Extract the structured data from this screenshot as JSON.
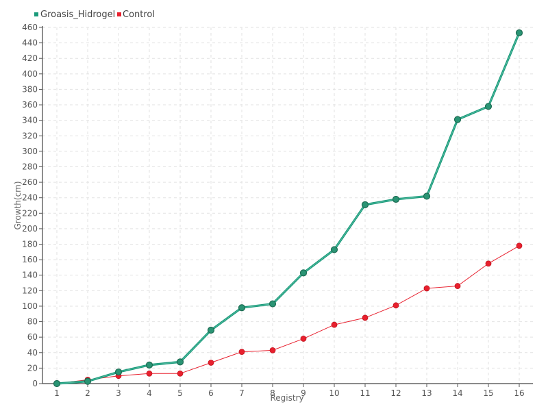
{
  "chart_data": {
    "type": "line",
    "title": "",
    "xlabel": "Registry",
    "ylabel": "Growth(cm)",
    "categories": [
      "1",
      "2",
      "3",
      "4",
      "5",
      "6",
      "7",
      "8",
      "9",
      "10",
      "11",
      "12",
      "13",
      "14",
      "15",
      "16"
    ],
    "ylim": [
      0,
      460
    ],
    "yticks": [
      0,
      20,
      40,
      60,
      80,
      100,
      120,
      140,
      160,
      180,
      200,
      220,
      240,
      260,
      280,
      300,
      320,
      340,
      360,
      380,
      400,
      420,
      440,
      460
    ],
    "grid": true,
    "legend_position": "top-left",
    "series": [
      {
        "name": "Groasis_Hidrogel",
        "color": "#1a9a7a",
        "values": [
          0,
          3,
          15,
          24,
          28,
          69,
          98,
          103,
          143,
          173,
          231,
          238,
          242,
          341,
          358,
          453
        ]
      },
      {
        "name": "Control",
        "color": "#e8202e",
        "values": [
          0,
          5,
          10,
          13,
          13,
          27,
          41,
          43,
          58,
          76,
          85,
          101,
          123,
          126,
          155,
          178
        ]
      }
    ]
  }
}
